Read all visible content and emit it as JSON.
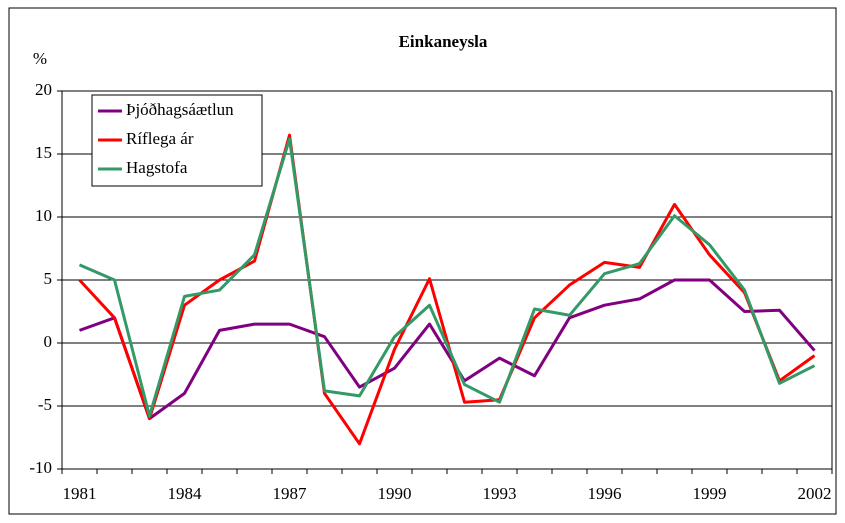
{
  "chart_data": {
    "type": "line",
    "title": "Einkaneysla",
    "y_label": "%",
    "categories": [
      "1981",
      null,
      null,
      "1984",
      null,
      null,
      "1987",
      null,
      null,
      "1990",
      null,
      null,
      "1993",
      null,
      null,
      "1996",
      null,
      null,
      "1999",
      null,
      null,
      "2002"
    ],
    "series": [
      {
        "name": "Þjóðhagsáætlun",
        "color": "#800080",
        "values": [
          1,
          2,
          -6,
          -4,
          1,
          1.5,
          1.5,
          0.5,
          -3.5,
          -2,
          1.5,
          -3,
          -1.2,
          -2.6,
          2,
          3,
          3.5,
          5,
          5,
          2.5,
          2.6,
          -0.6
        ]
      },
      {
        "name": "Ríflega ár",
        "color": "#ff0000",
        "values": [
          5,
          2,
          -6,
          3,
          5,
          6.5,
          16.5,
          -4,
          -8,
          -0.5,
          5.1,
          -4.7,
          -4.5,
          2,
          4.6,
          6.4,
          6,
          11,
          7,
          4,
          -3,
          -1
        ]
      },
      {
        "name": "Hagstofa",
        "color": "#339966",
        "values": [
          6.2,
          5,
          -5.8,
          3.7,
          4.2,
          7,
          16.2,
          -3.8,
          -4.2,
          0.5,
          3,
          -3.3,
          -4.7,
          2.7,
          2.2,
          5.5,
          6.3,
          10.1,
          7.8,
          4.2,
          -3.2,
          -1.8
        ]
      }
    ],
    "ylim": [
      -10,
      20
    ],
    "yticks": [
      -10,
      -5,
      0,
      5,
      10,
      15,
      20
    ],
    "grid": true,
    "legend": "top-left"
  }
}
